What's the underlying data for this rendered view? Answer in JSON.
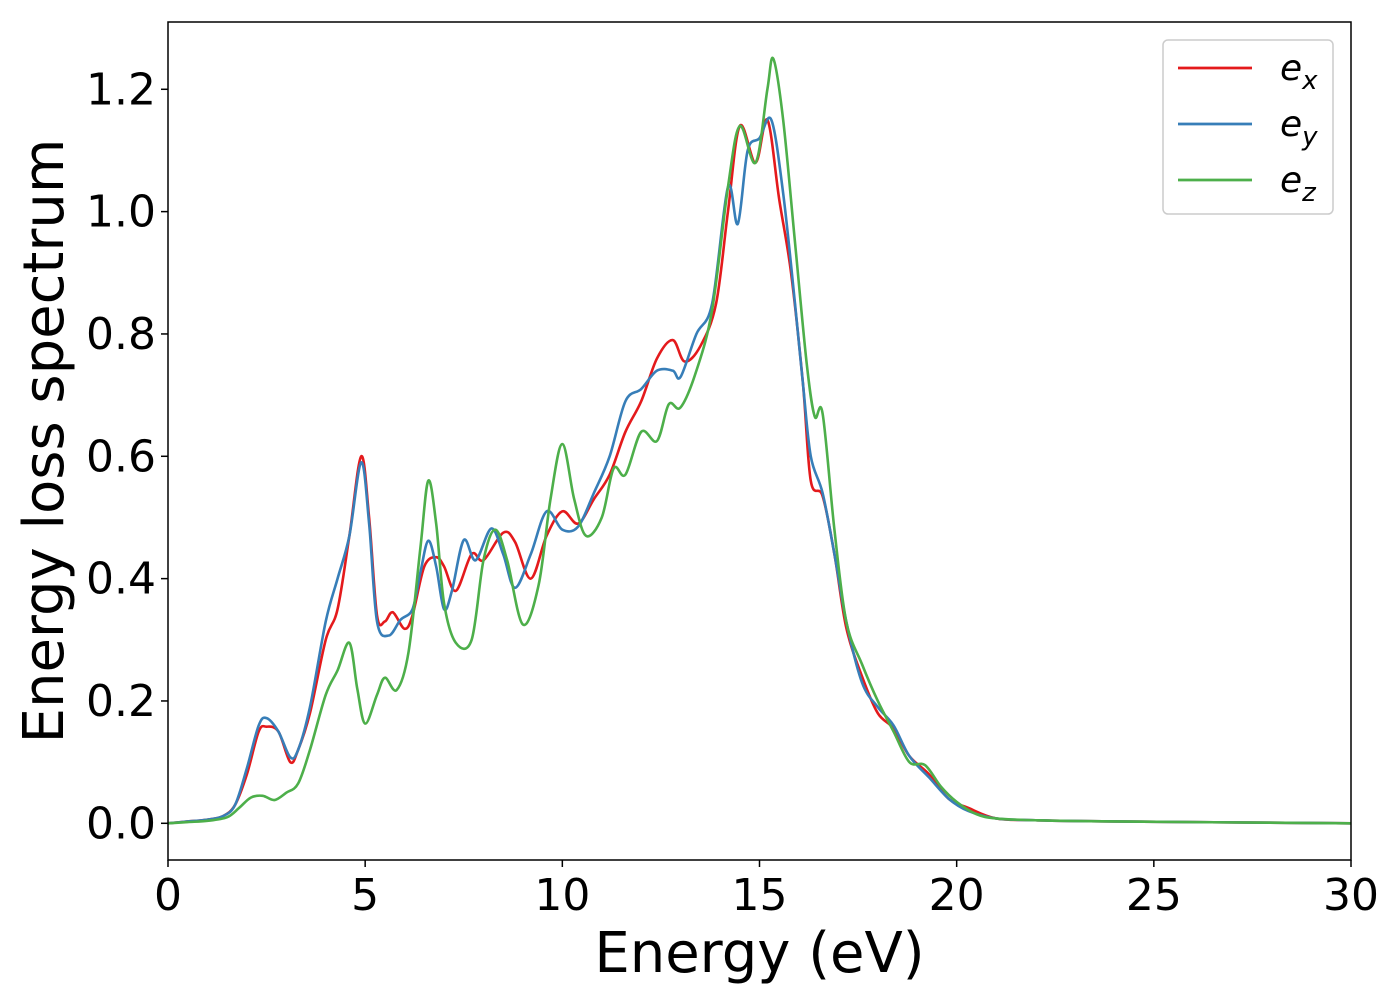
{
  "chart_data": {
    "type": "line",
    "xlabel": "Energy (eV)",
    "ylabel": "Energy loss spectrum",
    "xlim": [
      0,
      30
    ],
    "ylim": [
      -0.06,
      1.31
    ],
    "xticks": [
      "0",
      "5",
      "10",
      "15",
      "20",
      "25",
      "30"
    ],
    "yticks": [
      "0.0",
      "0.2",
      "0.4",
      "0.6",
      "0.8",
      "1.0",
      "1.2"
    ],
    "grid": false,
    "legend_position": "top-right",
    "series": [
      {
        "name": "e_x",
        "label_base": "e",
        "label_sub": "x",
        "color": "#e41a1c",
        "points": [
          [
            0,
            0
          ],
          [
            0.5,
            0.003
          ],
          [
            1.0,
            0.006
          ],
          [
            1.4,
            0.012
          ],
          [
            1.7,
            0.03
          ],
          [
            2.0,
            0.08
          ],
          [
            2.3,
            0.15
          ],
          [
            2.5,
            0.158
          ],
          [
            2.8,
            0.15
          ],
          [
            3.1,
            0.1
          ],
          [
            3.3,
            0.12
          ],
          [
            3.6,
            0.18
          ],
          [
            4.0,
            0.3
          ],
          [
            4.3,
            0.35
          ],
          [
            4.6,
            0.47
          ],
          [
            4.9,
            0.6
          ],
          [
            5.1,
            0.5
          ],
          [
            5.3,
            0.34
          ],
          [
            5.5,
            0.33
          ],
          [
            5.7,
            0.345
          ],
          [
            6.0,
            0.318
          ],
          [
            6.2,
            0.34
          ],
          [
            6.5,
            0.42
          ],
          [
            6.8,
            0.435
          ],
          [
            7.0,
            0.42
          ],
          [
            7.3,
            0.38
          ],
          [
            7.7,
            0.44
          ],
          [
            8.0,
            0.43
          ],
          [
            8.5,
            0.475
          ],
          [
            8.8,
            0.46
          ],
          [
            9.2,
            0.4
          ],
          [
            9.6,
            0.47
          ],
          [
            10.0,
            0.51
          ],
          [
            10.4,
            0.49
          ],
          [
            10.8,
            0.53
          ],
          [
            11.2,
            0.57
          ],
          [
            11.6,
            0.64
          ],
          [
            12.0,
            0.69
          ],
          [
            12.4,
            0.76
          ],
          [
            12.8,
            0.79
          ],
          [
            13.1,
            0.755
          ],
          [
            13.5,
            0.78
          ],
          [
            13.9,
            0.85
          ],
          [
            14.2,
            1.0
          ],
          [
            14.5,
            1.14
          ],
          [
            14.9,
            1.08
          ],
          [
            15.2,
            1.15
          ],
          [
            15.5,
            1.02
          ],
          [
            15.8,
            0.9
          ],
          [
            16.1,
            0.72
          ],
          [
            16.3,
            0.56
          ],
          [
            16.6,
            0.535
          ],
          [
            16.9,
            0.44
          ],
          [
            17.2,
            0.32
          ],
          [
            17.6,
            0.24
          ],
          [
            18.0,
            0.18
          ],
          [
            18.4,
            0.155
          ],
          [
            18.8,
            0.11
          ],
          [
            19.3,
            0.08
          ],
          [
            19.8,
            0.04
          ],
          [
            20.3,
            0.025
          ],
          [
            21.0,
            0.008
          ],
          [
            22.0,
            0.005
          ],
          [
            24.0,
            0.003
          ],
          [
            30.0,
            0.0
          ]
        ]
      },
      {
        "name": "e_y",
        "label_base": "e",
        "label_sub": "y",
        "color": "#377eb8",
        "points": [
          [
            0,
            0
          ],
          [
            0.5,
            0.003
          ],
          [
            1.0,
            0.006
          ],
          [
            1.4,
            0.012
          ],
          [
            1.7,
            0.03
          ],
          [
            2.0,
            0.09
          ],
          [
            2.3,
            0.16
          ],
          [
            2.5,
            0.172
          ],
          [
            2.8,
            0.15
          ],
          [
            3.1,
            0.108
          ],
          [
            3.3,
            0.12
          ],
          [
            3.6,
            0.19
          ],
          [
            4.0,
            0.33
          ],
          [
            4.3,
            0.4
          ],
          [
            4.6,
            0.47
          ],
          [
            4.9,
            0.59
          ],
          [
            5.1,
            0.49
          ],
          [
            5.3,
            0.33
          ],
          [
            5.6,
            0.307
          ],
          [
            5.9,
            0.333
          ],
          [
            6.2,
            0.35
          ],
          [
            6.4,
            0.41
          ],
          [
            6.6,
            0.462
          ],
          [
            6.8,
            0.42
          ],
          [
            7.0,
            0.35
          ],
          [
            7.2,
            0.38
          ],
          [
            7.5,
            0.463
          ],
          [
            7.8,
            0.43
          ],
          [
            8.2,
            0.482
          ],
          [
            8.5,
            0.44
          ],
          [
            8.8,
            0.385
          ],
          [
            9.2,
            0.44
          ],
          [
            9.6,
            0.51
          ],
          [
            10.0,
            0.48
          ],
          [
            10.4,
            0.485
          ],
          [
            10.8,
            0.54
          ],
          [
            11.2,
            0.6
          ],
          [
            11.6,
            0.69
          ],
          [
            12.0,
            0.71
          ],
          [
            12.4,
            0.74
          ],
          [
            12.8,
            0.74
          ],
          [
            13.0,
            0.73
          ],
          [
            13.4,
            0.8
          ],
          [
            13.8,
            0.85
          ],
          [
            14.2,
            1.04
          ],
          [
            14.45,
            0.98
          ],
          [
            14.7,
            1.1
          ],
          [
            15.0,
            1.12
          ],
          [
            15.3,
            1.15
          ],
          [
            15.6,
            1.03
          ],
          [
            15.9,
            0.85
          ],
          [
            16.1,
            0.72
          ],
          [
            16.3,
            0.6
          ],
          [
            16.6,
            0.54
          ],
          [
            16.9,
            0.44
          ],
          [
            17.2,
            0.33
          ],
          [
            17.6,
            0.23
          ],
          [
            18.0,
            0.19
          ],
          [
            18.4,
            0.16
          ],
          [
            18.8,
            0.11
          ],
          [
            19.3,
            0.075
          ],
          [
            19.8,
            0.04
          ],
          [
            20.3,
            0.02
          ],
          [
            21.0,
            0.008
          ],
          [
            22.0,
            0.005
          ],
          [
            24.0,
            0.003
          ],
          [
            30.0,
            0.0
          ]
        ]
      },
      {
        "name": "e_z",
        "label_base": "e",
        "label_sub": "z",
        "color": "#4daf4a",
        "points": [
          [
            0,
            0
          ],
          [
            0.5,
            0.002
          ],
          [
            1.0,
            0.004
          ],
          [
            1.5,
            0.01
          ],
          [
            1.8,
            0.025
          ],
          [
            2.1,
            0.042
          ],
          [
            2.4,
            0.045
          ],
          [
            2.7,
            0.038
          ],
          [
            3.0,
            0.05
          ],
          [
            3.3,
            0.065
          ],
          [
            3.6,
            0.12
          ],
          [
            4.0,
            0.21
          ],
          [
            4.3,
            0.25
          ],
          [
            4.6,
            0.295
          ],
          [
            4.8,
            0.22
          ],
          [
            5.0,
            0.163
          ],
          [
            5.3,
            0.21
          ],
          [
            5.5,
            0.238
          ],
          [
            5.8,
            0.218
          ],
          [
            6.1,
            0.28
          ],
          [
            6.4,
            0.45
          ],
          [
            6.6,
            0.56
          ],
          [
            6.8,
            0.49
          ],
          [
            7.0,
            0.36
          ],
          [
            7.3,
            0.295
          ],
          [
            7.7,
            0.3
          ],
          [
            8.0,
            0.43
          ],
          [
            8.3,
            0.48
          ],
          [
            8.6,
            0.43
          ],
          [
            9.0,
            0.325
          ],
          [
            9.4,
            0.39
          ],
          [
            9.7,
            0.53
          ],
          [
            10.0,
            0.62
          ],
          [
            10.3,
            0.53
          ],
          [
            10.6,
            0.47
          ],
          [
            11.0,
            0.5
          ],
          [
            11.3,
            0.58
          ],
          [
            11.6,
            0.57
          ],
          [
            12.0,
            0.64
          ],
          [
            12.4,
            0.625
          ],
          [
            12.7,
            0.685
          ],
          [
            13.0,
            0.68
          ],
          [
            13.4,
            0.74
          ],
          [
            13.8,
            0.84
          ],
          [
            14.2,
            1.04
          ],
          [
            14.5,
            1.14
          ],
          [
            14.9,
            1.08
          ],
          [
            15.2,
            1.2
          ],
          [
            15.35,
            1.25
          ],
          [
            15.6,
            1.15
          ],
          [
            15.9,
            0.95
          ],
          [
            16.2,
            0.75
          ],
          [
            16.4,
            0.665
          ],
          [
            16.6,
            0.67
          ],
          [
            16.9,
            0.48
          ],
          [
            17.2,
            0.33
          ],
          [
            17.6,
            0.26
          ],
          [
            18.0,
            0.2
          ],
          [
            18.4,
            0.15
          ],
          [
            18.8,
            0.1
          ],
          [
            19.2,
            0.095
          ],
          [
            19.6,
            0.06
          ],
          [
            20.0,
            0.035
          ],
          [
            20.5,
            0.015
          ],
          [
            21.0,
            0.008
          ],
          [
            22.0,
            0.005
          ],
          [
            24.0,
            0.003
          ],
          [
            30.0,
            0.0
          ]
        ]
      }
    ]
  }
}
